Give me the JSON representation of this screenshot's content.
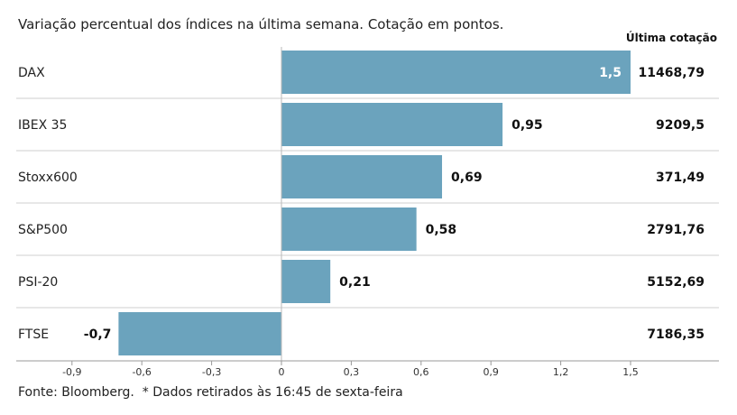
{
  "chart_data": {
    "type": "bar",
    "orientation": "horizontal",
    "subtitle": "Variação percentual dos índices na última semana. Cotação em pontos.",
    "categories": [
      "DAX",
      "IBEX 35",
      "Stoxx600",
      "S&P500",
      "PSI-20",
      "FTSE"
    ],
    "series": [
      {
        "values": [
          1.5,
          0.95,
          0.69,
          0.58,
          0.21,
          -0.7
        ]
      }
    ],
    "value_labels": [
      "1,5",
      "0,95",
      "0,69",
      "0,58",
      "0,21",
      "-0,7"
    ],
    "quote_header": "Última cotação",
    "quotes": [
      "11468,79",
      "9209,5",
      "371,49",
      "2791,76",
      "5152,69",
      "7186,35"
    ],
    "xlim": [
      -0.9,
      1.5
    ],
    "xticks": [
      -0.9,
      -0.6,
      -0.3,
      0,
      0.3,
      0.6,
      0.9,
      1.2,
      1.5
    ],
    "xtick_labels": [
      "-0,9",
      "-0,6",
      "-0,3",
      "0",
      "0,3",
      "0,6",
      "0,9",
      "1,2",
      "1,5"
    ],
    "bar_color": "#6ba3bd",
    "grid": false
  },
  "footer": "Fonte: Bloomberg.  * Dados retirados às 16:45 de sexta-feira"
}
